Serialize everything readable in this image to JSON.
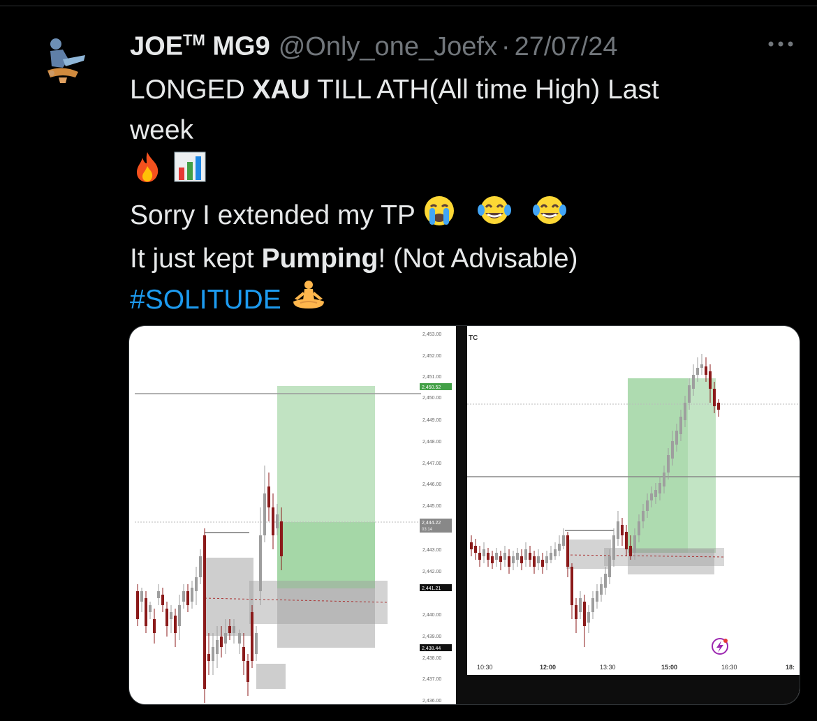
{
  "tweet": {
    "author_name": "JOE",
    "author_tm": "TM",
    "author_suffix": " MG9",
    "handle": "@Only_one_Joefx",
    "separator": "·",
    "date": "27/07/24",
    "more_icon": "more-horizontal-icon",
    "line1_a": "LONGED ",
    "line1_bold": "XAU",
    "line1_b": " TILL ATH(All time High) Last",
    "line2": "week",
    "line3_emojis": [
      "fire-icon",
      "bar-chart-icon"
    ],
    "line4_text": "Sorry I extended my TP ",
    "line4_emojis": [
      "loudly-crying-face-icon",
      "tears-of-joy-icon",
      "tears-of-joy-icon"
    ],
    "line5_a": "It just kept ",
    "line5_bold": "Pumping",
    "line5_b": "! (Not Advisable)",
    "hashtag": "#SOLITUDE",
    "hashtag_emoji": "person-in-lotus-position-icon"
  },
  "chart_left": {
    "price_labels": [
      "2,453.00",
      "2,452.00",
      "2,451.00",
      "2,450.00",
      "2,449.00",
      "2,448.00",
      "2,447.00",
      "2,446.00",
      "2,445.00",
      "2,443.00",
      "2,442.00",
      "2,440.00",
      "2,439.00",
      "2,438.00",
      "2,437.00",
      "2,436.00"
    ],
    "tp_price": "2,450.52",
    "current_price": "2,444.22",
    "current_time": "03:14",
    "entry_price": "2,441.21",
    "sl_price": "2,438.44"
  },
  "chart_right": {
    "symbol_partial": "TC",
    "time_labels": [
      "10:30",
      "12:00",
      "13:30",
      "15:00",
      "16:30",
      "18:"
    ],
    "watermark_icon": "lightning-badge-icon"
  },
  "colors": {
    "background": "#000000",
    "text": "#e7e9ea",
    "muted": "#71767b",
    "link": "#1d9bf0",
    "profit_zone": "#4caf50",
    "loss_zone": "#9e9e9e",
    "candle_up": "#9e9e9e",
    "candle_down": "#8b1a1a"
  }
}
